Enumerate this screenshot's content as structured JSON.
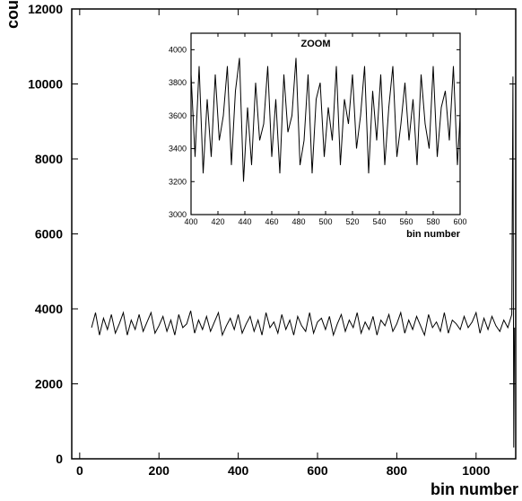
{
  "chart_data": [
    {
      "type": "line",
      "title": "",
      "xlabel": "bin number",
      "ylabel": "counts",
      "xlim": [
        -20,
        1100
      ],
      "ylim": [
        0,
        12000
      ],
      "x_ticks": [
        0,
        200,
        400,
        600,
        800,
        1000
      ],
      "y_ticks": [
        0,
        2000,
        4000,
        6000,
        8000,
        10000,
        12000
      ],
      "grid": false,
      "series": [
        {
          "x": [
            30,
            40,
            50,
            60,
            70,
            80,
            90,
            100,
            110,
            120,
            130,
            140,
            150,
            160,
            170,
            180,
            190,
            200,
            210,
            220,
            230,
            240,
            250,
            260,
            270,
            280,
            290,
            300,
            310,
            320,
            330,
            340,
            350,
            360,
            370,
            380,
            390,
            400,
            410,
            420,
            430,
            440,
            450,
            460,
            470,
            480,
            490,
            500,
            510,
            520,
            530,
            540,
            550,
            560,
            570,
            580,
            590,
            600,
            610,
            620,
            630,
            640,
            650,
            660,
            670,
            680,
            690,
            700,
            710,
            720,
            730,
            740,
            750,
            760,
            770,
            780,
            790,
            800,
            810,
            820,
            830,
            840,
            850,
            860,
            870,
            880,
            890,
            900,
            910,
            920,
            930,
            940,
            950,
            960,
            970,
            980,
            990,
            1000,
            1010,
            1020,
            1030,
            1040,
            1050,
            1060,
            1070,
            1080,
            1090,
            1093,
            1095,
            1097
          ],
          "y": [
            3500,
            3900,
            3300,
            3750,
            3450,
            3850,
            3350,
            3600,
            3900,
            3300,
            3700,
            3450,
            3850,
            3400,
            3650,
            3900,
            3350,
            3550,
            3800,
            3400,
            3700,
            3300,
            3850,
            3500,
            3600,
            3950,
            3350,
            3700,
            3450,
            3800,
            3400,
            3650,
            3900,
            3300,
            3550,
            3750,
            3450,
            3850,
            3350,
            3600,
            3800,
            3400,
            3700,
            3300,
            3900,
            3500,
            3650,
            3350,
            3850,
            3450,
            3700,
            3300,
            3800,
            3550,
            3400,
            3900,
            3350,
            3650,
            3750,
            3450,
            3800,
            3300,
            3600,
            3850,
            3400,
            3700,
            3500,
            3900,
            3350,
            3650,
            3450,
            3800,
            3300,
            3700,
            3550,
            3850,
            3400,
            3600,
            3900,
            3350,
            3700,
            3450,
            3800,
            3550,
            3300,
            3850,
            3500,
            3650,
            3400,
            3900,
            3350,
            3700,
            3600,
            3450,
            3800,
            3500,
            3650,
            3900,
            3350,
            3750,
            3450,
            3800,
            3550,
            3400,
            3700,
            3500,
            3850,
            10200,
            300,
            3500
          ]
        }
      ]
    },
    {
      "type": "line",
      "title": "ZOOM",
      "xlabel": "bin number",
      "ylabel": "",
      "xlim": [
        400,
        600
      ],
      "ylim": [
        3000,
        4100
      ],
      "x_ticks": [
        400,
        420,
        440,
        460,
        480,
        500,
        520,
        540,
        560,
        580,
        600
      ],
      "y_ticks": [
        3000,
        3200,
        3400,
        3600,
        3800,
        4000
      ],
      "grid": false,
      "series": [
        {
          "x": [
            400,
            403,
            406,
            409,
            412,
            415,
            418,
            421,
            424,
            427,
            430,
            433,
            436,
            439,
            442,
            445,
            448,
            451,
            454,
            457,
            460,
            463,
            466,
            469,
            472,
            475,
            478,
            481,
            484,
            487,
            490,
            493,
            496,
            499,
            502,
            505,
            508,
            511,
            514,
            517,
            520,
            523,
            526,
            529,
            532,
            535,
            538,
            541,
            544,
            547,
            550,
            553,
            556,
            559,
            562,
            565,
            568,
            571,
            574,
            577,
            580,
            583,
            586,
            589,
            592,
            595,
            598,
            600
          ],
          "y": [
            3850,
            3350,
            3900,
            3250,
            3700,
            3350,
            3850,
            3450,
            3600,
            3900,
            3300,
            3750,
            3950,
            3200,
            3650,
            3300,
            3800,
            3450,
            3550,
            3900,
            3350,
            3700,
            3250,
            3850,
            3500,
            3600,
            3950,
            3300,
            3450,
            3850,
            3250,
            3700,
            3800,
            3350,
            3650,
            3450,
            3900,
            3300,
            3700,
            3550,
            3850,
            3400,
            3600,
            3900,
            3250,
            3750,
            3450,
            3850,
            3300,
            3650,
            3900,
            3350,
            3550,
            3800,
            3450,
            3700,
            3300,
            3850,
            3550,
            3400,
            3900,
            3350,
            3650,
            3750,
            3450,
            3900,
            3300,
            3600
          ]
        }
      ]
    }
  ]
}
